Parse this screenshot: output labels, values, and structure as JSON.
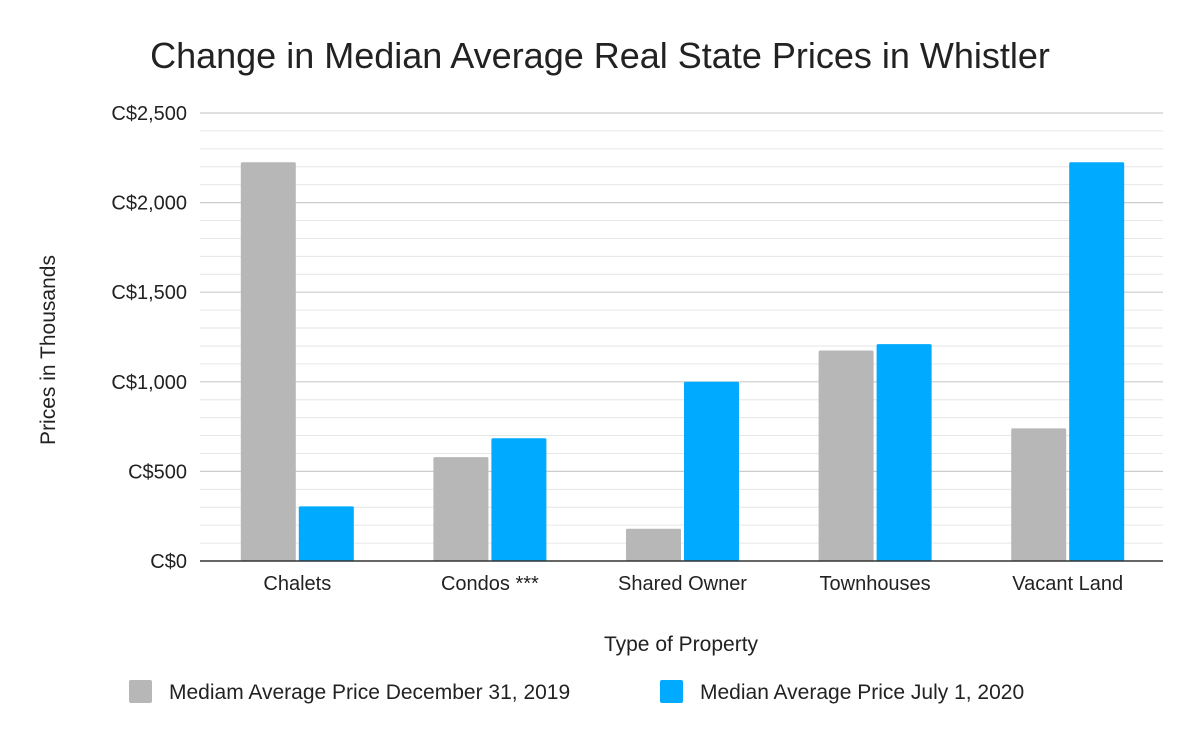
{
  "chart_data": {
    "type": "bar",
    "title": "Change in Median Average Real State Prices in Whistler",
    "xlabel": "Type of Property",
    "ylabel": "Prices in Thousands",
    "categories": [
      "Chalets",
      "Condos ***",
      "Shared Owner",
      "Townhouses",
      "Vacant Land"
    ],
    "series": [
      {
        "name": "Mediam Average Price December 31, 2019",
        "color": "#b7b7b7",
        "values": [
          2225,
          580,
          180,
          1175,
          740
        ]
      },
      {
        "name": "Median Average Price July 1, 2020",
        "color": "#00aaff",
        "values": [
          305,
          685,
          1000,
          1210,
          2225
        ]
      }
    ],
    "ylim": [
      0,
      2500
    ],
    "y_ticks": [
      0,
      500,
      1000,
      1500,
      2000,
      2500
    ],
    "y_tick_labels": [
      "C$0",
      "C$500",
      "C$1,000",
      "C$1,500",
      "C$2,000",
      "C$2,500"
    ],
    "grid": true,
    "legend_position": "bottom"
  }
}
